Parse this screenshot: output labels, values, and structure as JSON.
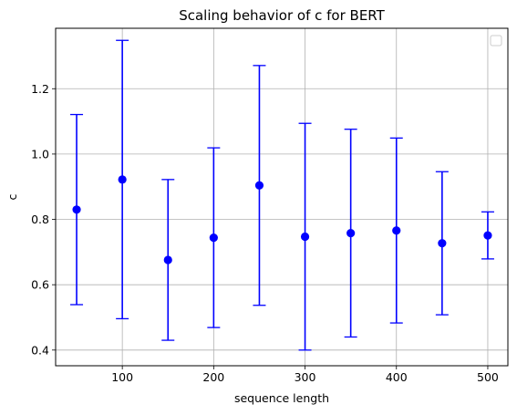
{
  "chart_data": {
    "type": "scatter",
    "title": "Scaling behavior of c for BERT",
    "xlabel": "sequence length",
    "ylabel": "c",
    "xlim": [
      27,
      522
    ],
    "ylim": [
      0.352,
      1.385
    ],
    "xticks": [
      100,
      200,
      300,
      400,
      500
    ],
    "yticks": [
      0.4,
      0.6,
      0.8,
      1.0,
      1.2
    ],
    "ytick_labels": [
      "0.4",
      "0.6",
      "0.8",
      "1.0",
      "1.2"
    ],
    "grid": true,
    "legend": "top-right (empty)",
    "series": [
      {
        "x": [
          50,
          100,
          150,
          200,
          250,
          300,
          350,
          400,
          450,
          500
        ],
        "y": [
          0.83,
          0.922,
          0.676,
          0.744,
          0.904,
          0.747,
          0.758,
          0.766,
          0.727,
          0.751
        ],
        "yerr": [
          0.291,
          0.426,
          0.246,
          0.275,
          0.367,
          0.347,
          0.318,
          0.283,
          0.219,
          0.072
        ],
        "color": "#0000ff"
      }
    ]
  }
}
